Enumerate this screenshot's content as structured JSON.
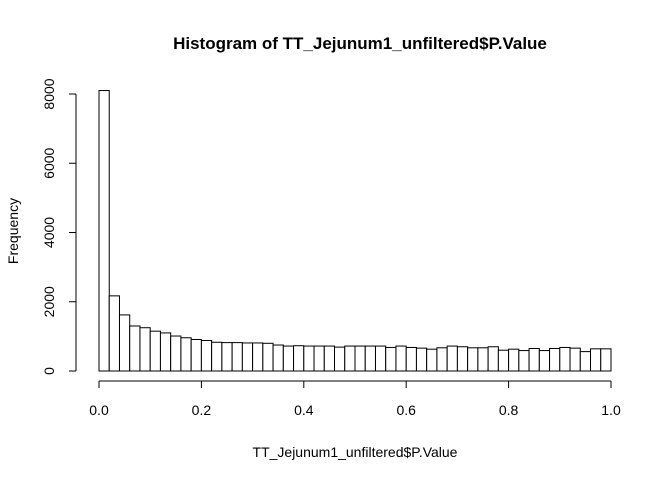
{
  "chart_data": {
    "type": "bar",
    "title": "Histogram of TT_Jejunum1_unfiltered$P.Value",
    "xlabel": "TT_Jejunum1_unfiltered$P.Value",
    "ylabel": "Frequency",
    "xlim": [
      0,
      1
    ],
    "ylim": [
      0,
      8100
    ],
    "bin_width": 0.02,
    "x_ticks": [
      0,
      0.2,
      0.4,
      0.6,
      0.8,
      1
    ],
    "x_tick_labels": [
      "0.0",
      "0.2",
      "0.4",
      "0.6",
      "0.8",
      "1.0"
    ],
    "y_ticks": [
      0,
      2000,
      4000,
      6000,
      8000
    ],
    "y_tick_labels": [
      "0",
      "2000",
      "4000",
      "6000",
      "8000"
    ],
    "bin_starts": [
      0.0,
      0.02,
      0.04,
      0.06,
      0.08,
      0.1,
      0.12,
      0.14,
      0.16,
      0.18,
      0.2,
      0.22,
      0.24,
      0.26,
      0.28,
      0.3,
      0.32,
      0.34,
      0.36,
      0.38,
      0.4,
      0.42,
      0.44,
      0.46,
      0.48,
      0.5,
      0.52,
      0.54,
      0.56,
      0.58,
      0.6,
      0.62,
      0.64,
      0.66,
      0.68,
      0.7,
      0.72,
      0.74,
      0.76,
      0.78,
      0.8,
      0.82,
      0.84,
      0.86,
      0.88,
      0.9,
      0.92,
      0.94,
      0.96,
      0.98
    ],
    "values": [
      8100,
      2170,
      1620,
      1300,
      1250,
      1150,
      1100,
      1010,
      960,
      910,
      880,
      830,
      820,
      820,
      810,
      810,
      800,
      750,
      720,
      730,
      720,
      720,
      720,
      690,
      720,
      720,
      720,
      720,
      680,
      720,
      680,
      660,
      630,
      670,
      720,
      700,
      670,
      670,
      700,
      600,
      630,
      590,
      650,
      590,
      650,
      680,
      660,
      560,
      640,
      640
    ]
  }
}
